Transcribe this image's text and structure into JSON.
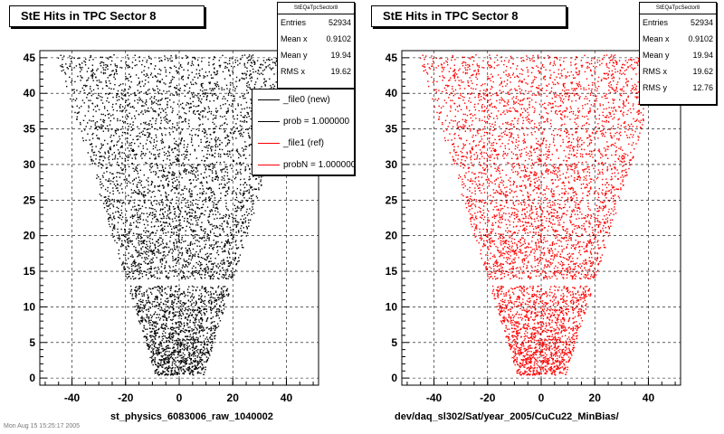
{
  "pads": [
    {
      "title": "StE Hits in TPC Sector 8",
      "stats": {
        "name": "StEQaTpcSector8",
        "rows": [
          [
            "Entries",
            "52934"
          ],
          [
            "Mean x",
            "0.9102"
          ],
          [
            "Mean y",
            "19.94"
          ],
          [
            "RMS x",
            "19.62"
          ]
        ]
      },
      "xtitle": "st_physics_6083006_raw_1040002",
      "color": "#000000"
    },
    {
      "title": "StE Hits in TPC Sector 8",
      "stats": {
        "name": "StEQaTpcSector8",
        "rows": [
          [
            "Entries",
            "52934"
          ],
          [
            "Mean x",
            "0.9102"
          ],
          [
            "Mean y",
            "19.94"
          ],
          [
            "RMS x",
            "19.62"
          ],
          [
            "RMS y",
            "12.76"
          ]
        ]
      },
      "xtitle": "dev/daq_sl302/Sat/year_2005/CuCu22_MinBias/",
      "color": "#ff0000"
    }
  ],
  "legend": {
    "entries": [
      {
        "label": "_file0 (new)",
        "color": "#000000"
      },
      {
        "label": "prob = 1.000000",
        "color": "#000000"
      },
      {
        "label": "_file1 (ref)",
        "color": "#ff0000"
      },
      {
        "label": "probN = 1.000000",
        "color": "#ff0000"
      }
    ]
  },
  "footer": "Mon Aug 15 15:25:17 2005",
  "chart_data": [
    {
      "type": "scatter",
      "title": "StE Hits in TPC Sector 8",
      "xlabel": "st_physics_6083006_raw_1040002",
      "ylabel": "",
      "xlim": [
        -52,
        52
      ],
      "ylim": [
        -1,
        46
      ],
      "xticks": [
        -40,
        -20,
        0,
        20,
        40
      ],
      "yticks": [
        0,
        5,
        10,
        15,
        20,
        25,
        30,
        35,
        40,
        45
      ],
      "grid": true,
      "series": [
        {
          "name": "_file0 (new)",
          "color": "#000000",
          "region": {
            "row_halfwidth_start": 9,
            "row_halfwidth_end": 46,
            "y_min": 0.5,
            "y_max": 45.5,
            "gap_y": 13.5
          }
        }
      ]
    },
    {
      "type": "scatter",
      "title": "StE Hits in TPC Sector 8",
      "xlabel": "dev/daq_sl302/Sat/year_2005/CuCu22_MinBias/",
      "ylabel": "",
      "xlim": [
        -52,
        52
      ],
      "ylim": [
        -1,
        46
      ],
      "xticks": [
        -40,
        -20,
        0,
        20,
        40
      ],
      "yticks": [
        0,
        5,
        10,
        15,
        20,
        25,
        30,
        35,
        40,
        45
      ],
      "grid": true,
      "series": [
        {
          "name": "_file1 (ref)",
          "color": "#ff0000",
          "region": {
            "row_halfwidth_start": 9,
            "row_halfwidth_end": 46,
            "y_min": 0.5,
            "y_max": 45.5,
            "gap_y": 13.5
          }
        }
      ]
    }
  ]
}
